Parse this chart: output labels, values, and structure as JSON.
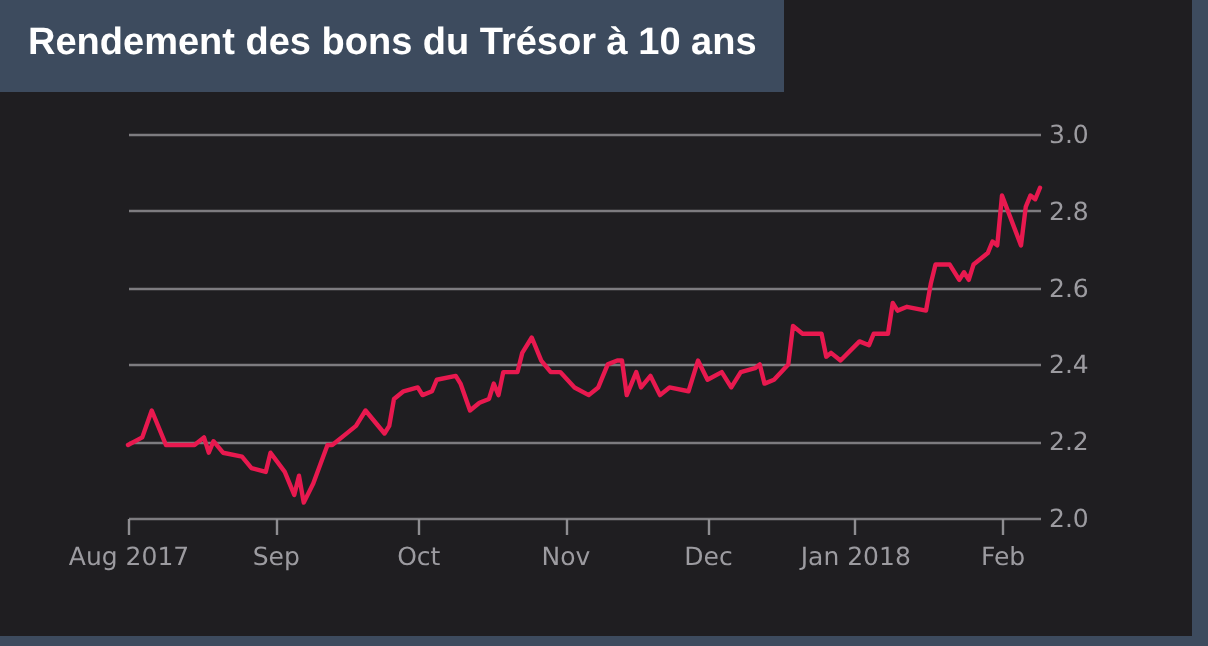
{
  "chart_data": {
    "type": "line",
    "title": "Rendement des bons du Trésor à 10 ans",
    "x": [
      "2017-08-01",
      "2017-08-04",
      "2017-08-06",
      "2017-08-09",
      "2017-08-11",
      "2017-08-15",
      "2017-08-17",
      "2017-08-18",
      "2017-08-19",
      "2017-08-21",
      "2017-08-25",
      "2017-08-27",
      "2017-08-30",
      "2017-08-31",
      "2017-09-03",
      "2017-09-05",
      "2017-09-06",
      "2017-09-07",
      "2017-09-09",
      "2017-09-12",
      "2017-09-13",
      "2017-09-15",
      "2017-09-18",
      "2017-09-20",
      "2017-09-22",
      "2017-09-24",
      "2017-09-25",
      "2017-09-26",
      "2017-09-28",
      "2017-10-01",
      "2017-10-02",
      "2017-10-04",
      "2017-10-05",
      "2017-10-09",
      "2017-10-10",
      "2017-10-12",
      "2017-10-14",
      "2017-10-16",
      "2017-10-17",
      "2017-10-18",
      "2017-10-19",
      "2017-10-22",
      "2017-10-23",
      "2017-10-25",
      "2017-10-27",
      "2017-10-29",
      "2017-10-31",
      "2017-11-03",
      "2017-11-06",
      "2017-11-08",
      "2017-11-10",
      "2017-11-12",
      "2017-11-13",
      "2017-11-14",
      "2017-11-16",
      "2017-11-17",
      "2017-11-19",
      "2017-11-21",
      "2017-11-23",
      "2017-11-27",
      "2017-11-29",
      "2017-12-01",
      "2017-12-04",
      "2017-12-06",
      "2017-12-08",
      "2017-12-11",
      "2017-12-12",
      "2017-12-13",
      "2017-12-15",
      "2017-12-18",
      "2017-12-19",
      "2017-12-21",
      "2017-12-25",
      "2017-12-26",
      "2017-12-27",
      "2017-12-29",
      "2018-01-02",
      "2018-01-04",
      "2018-01-05",
      "2018-01-08",
      "2018-01-09",
      "2018-01-10",
      "2018-01-12",
      "2018-01-16",
      "2018-01-17",
      "2018-01-18",
      "2018-01-21",
      "2018-01-23",
      "2018-01-24",
      "2018-01-25",
      "2018-01-26",
      "2018-01-29",
      "2018-01-30",
      "2018-01-31",
      "2018-02-01",
      "2018-02-05",
      "2018-02-06",
      "2018-02-07",
      "2018-02-08",
      "2018-02-09"
    ],
    "values": [
      2.19,
      2.21,
      2.28,
      2.19,
      2.19,
      2.19,
      2.21,
      2.17,
      2.2,
      2.17,
      2.16,
      2.13,
      2.12,
      2.17,
      2.12,
      2.06,
      2.11,
      2.04,
      2.09,
      2.19,
      2.19,
      2.21,
      2.24,
      2.28,
      2.25,
      2.22,
      2.24,
      2.31,
      2.33,
      2.34,
      2.32,
      2.33,
      2.36,
      2.37,
      2.35,
      2.28,
      2.3,
      2.31,
      2.35,
      2.32,
      2.38,
      2.38,
      2.43,
      2.47,
      2.41,
      2.38,
      2.38,
      2.34,
      2.32,
      2.34,
      2.4,
      2.41,
      2.41,
      2.32,
      2.38,
      2.34,
      2.37,
      2.32,
      2.34,
      2.33,
      2.41,
      2.36,
      2.38,
      2.34,
      2.38,
      2.39,
      2.4,
      2.35,
      2.36,
      2.4,
      2.5,
      2.48,
      2.48,
      2.42,
      2.43,
      2.41,
      2.46,
      2.45,
      2.48,
      2.48,
      2.56,
      2.54,
      2.55,
      2.54,
      2.61,
      2.66,
      2.66,
      2.62,
      2.64,
      2.62,
      2.66,
      2.69,
      2.72,
      2.71,
      2.84,
      2.71,
      2.81,
      2.84,
      2.83,
      2.86
    ],
    "color": "#e8194f",
    "xlim": [
      "2017-08-01",
      "2018-02-09"
    ],
    "xticks": [
      {
        "value": "2017-08-01",
        "label": "Aug 2017"
      },
      {
        "value": "2017-09-01",
        "label": "Sep"
      },
      {
        "value": "2017-10-01",
        "label": "Oct"
      },
      {
        "value": "2017-11-01",
        "label": "Nov"
      },
      {
        "value": "2017-12-01",
        "label": "Dec"
      },
      {
        "value": "2018-01-01",
        "label": "Jan 2018"
      },
      {
        "value": "2018-02-01",
        "label": "Feb"
      }
    ],
    "ylim": [
      2.0,
      3.0
    ],
    "yticks": [
      {
        "value": 2.0,
        "label": "2.0"
      },
      {
        "value": 2.2,
        "label": "2.2"
      },
      {
        "value": 2.4,
        "label": "2.4"
      },
      {
        "value": 2.6,
        "label": "2.6"
      },
      {
        "value": 2.8,
        "label": "2.8"
      },
      {
        "value": 3.0,
        "label": "3.0"
      }
    ],
    "grid": "y",
    "marker": "none",
    "line_style": "solid"
  }
}
